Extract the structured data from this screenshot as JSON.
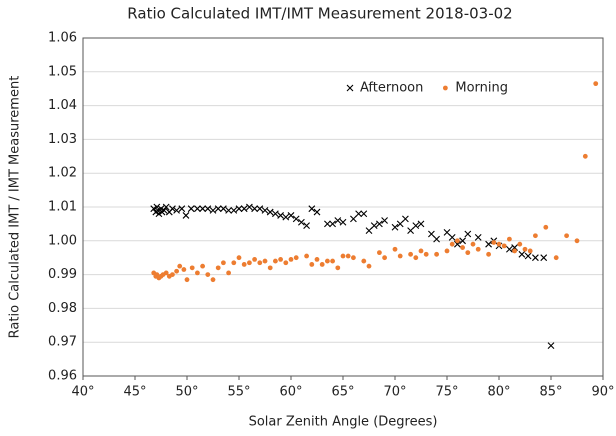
{
  "chart_data": {
    "type": "scatter",
    "title": "Ratio Calculated IMT/IMT Measurement 2018-03-02",
    "x_label": "Solar Zenith Angle (Degrees)",
    "y_label": "Ratio Calculated IMT / IMT Measurement",
    "xlim": [
      40,
      90
    ],
    "xticks": [
      {
        "value": 40,
        "label": "40°"
      },
      {
        "value": 45,
        "label": "45°"
      },
      {
        "value": 50,
        "label": "50°"
      },
      {
        "value": 55,
        "label": "55°"
      },
      {
        "value": 60,
        "label": "60°"
      },
      {
        "value": 65,
        "label": "65°"
      },
      {
        "value": 70,
        "label": "70°"
      },
      {
        "value": 75,
        "label": "75°"
      },
      {
        "value": 80,
        "label": "80°"
      },
      {
        "value": 85,
        "label": "85°"
      },
      {
        "value": 90,
        "label": "90°"
      }
    ],
    "ylim": [
      0.96,
      1.06
    ],
    "yticks": [
      0.96,
      0.97,
      0.98,
      0.99,
      {
        "value": 1,
        "label": "1.00"
      },
      1.01,
      1.02,
      1.03,
      1.04,
      1.05,
      1.06
    ],
    "grid": true,
    "legend": "upper right",
    "series": [
      {
        "name": "Afternoon",
        "color": "#000000",
        "marker": "x",
        "x": [
          46.8,
          47.0,
          47.1,
          47.2,
          47.3,
          47.5,
          47.6,
          47.8,
          48.0,
          48.3,
          48.6,
          49.0,
          49.5,
          49.9,
          50.4,
          51.0,
          51.5,
          52.0,
          52.5,
          53.0,
          53.5,
          54.0,
          54.5,
          55.0,
          55.5,
          56.0,
          56.5,
          57.0,
          57.5,
          58.0,
          58.5,
          59.0,
          59.5,
          60.0,
          60.5,
          61.0,
          61.5,
          62.0,
          62.5,
          63.5,
          64.0,
          64.5,
          65.0,
          66.0,
          66.5,
          67.0,
          67.5,
          68.0,
          68.5,
          69.0,
          70.0,
          70.5,
          71.0,
          71.5,
          72.0,
          72.5,
          73.5,
          74.0,
          75.0,
          75.5,
          76.0,
          76.5,
          77.0,
          78.0,
          79.0,
          79.5,
          80.0,
          81.0,
          81.5,
          82.2,
          82.8,
          83.5,
          84.3,
          85.0
        ],
        "values": [
          1.0095,
          1.0085,
          1.01,
          1.009,
          1.008,
          1.0095,
          1.0085,
          1.009,
          1.01,
          1.0085,
          1.0095,
          1.009,
          1.0095,
          1.0075,
          1.0095,
          1.0095,
          1.0095,
          1.0095,
          1.009,
          1.0095,
          1.0095,
          1.009,
          1.009,
          1.0095,
          1.0095,
          1.01,
          1.0095,
          1.0095,
          1.009,
          1.0085,
          1.008,
          1.0075,
          1.007,
          1.0075,
          1.0065,
          1.0055,
          1.0045,
          1.0095,
          1.0085,
          1.005,
          1.005,
          1.006,
          1.0055,
          1.0065,
          1.008,
          1.008,
          1.003,
          1.0045,
          1.005,
          1.006,
          1.004,
          1.005,
          1.0065,
          1.003,
          1.0045,
          1.005,
          1.002,
          1.0005,
          1.0025,
          1.001,
          0.999,
          1.0,
          1.002,
          1.001,
          0.999,
          1.0,
          0.9985,
          0.9975,
          0.998,
          0.996,
          0.9955,
          0.995,
          0.995,
          0.969
        ]
      },
      {
        "name": "Morning",
        "color": "#ED7D31",
        "marker": "circle",
        "x": [
          46.8,
          47.0,
          47.1,
          47.3,
          47.5,
          47.7,
          48.0,
          48.3,
          48.6,
          49.0,
          49.3,
          49.7,
          50.0,
          50.5,
          51.0,
          51.5,
          52.0,
          52.5,
          53.0,
          53.5,
          54.0,
          54.5,
          55.0,
          55.5,
          56.0,
          56.5,
          57.0,
          57.5,
          58.0,
          58.5,
          59.0,
          59.5,
          60.0,
          60.5,
          61.5,
          62.0,
          62.5,
          63.0,
          63.5,
          64.0,
          64.5,
          65.0,
          65.5,
          66.0,
          67.0,
          67.5,
          68.5,
          69.0,
          70.0,
          70.5,
          71.5,
          72.0,
          72.5,
          73.0,
          74.0,
          75.0,
          75.5,
          76.0,
          76.5,
          77.0,
          77.5,
          78.0,
          79.0,
          79.5,
          80.0,
          80.5,
          81.0,
          81.5,
          82.0,
          82.5,
          83.0,
          83.5,
          84.5,
          85.5,
          86.5,
          87.5,
          88.3,
          89.3
        ],
        "values": [
          0.9905,
          0.9895,
          0.99,
          0.989,
          0.9895,
          0.99,
          0.9905,
          0.9895,
          0.99,
          0.991,
          0.9925,
          0.9915,
          0.9885,
          0.992,
          0.9905,
          0.9925,
          0.99,
          0.9885,
          0.992,
          0.9935,
          0.9905,
          0.9935,
          0.995,
          0.993,
          0.9935,
          0.9945,
          0.9935,
          0.994,
          0.992,
          0.994,
          0.9945,
          0.9935,
          0.9945,
          0.995,
          0.9955,
          0.993,
          0.9945,
          0.993,
          0.994,
          0.994,
          0.992,
          0.9955,
          0.9955,
          0.995,
          0.994,
          0.9925,
          0.9965,
          0.995,
          0.9975,
          0.9955,
          0.996,
          0.995,
          0.997,
          0.996,
          0.996,
          0.997,
          0.999,
          1.0,
          0.998,
          0.9965,
          0.999,
          0.9975,
          0.996,
          0.9995,
          0.999,
          0.9985,
          1.0005,
          0.997,
          0.999,
          0.9975,
          0.997,
          1.0015,
          1.004,
          0.995,
          1.0015,
          1.0,
          1.025,
          1.0465
        ]
      }
    ]
  }
}
